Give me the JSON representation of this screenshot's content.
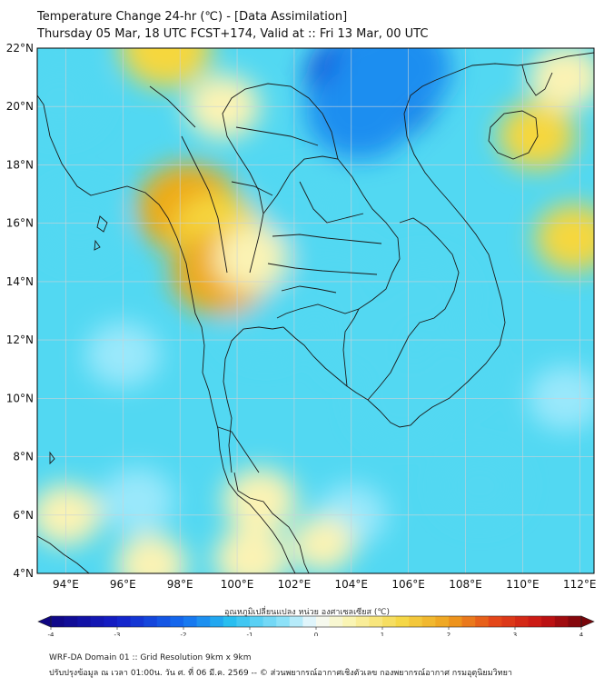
{
  "header": {
    "title_line1": "Temperature Change 24-hr (℃) - [Data Assimilation]",
    "title_line2": "Thursday 05 Mar, 18 UTC FCST+174, Valid at :: Fri 13 Mar, 00 UTC"
  },
  "map": {
    "lat_range": [
      4,
      22
    ],
    "lon_range": [
      93,
      112.5
    ],
    "lat_labels": [
      "4°N",
      "6°N",
      "8°N",
      "10°N",
      "12°N",
      "14°N",
      "16°N",
      "18°N",
      "20°N",
      "22°N"
    ],
    "lon_labels": [
      "94°E",
      "96°E",
      "98°E",
      "100°E",
      "102°E",
      "104°E",
      "106°E",
      "108°E",
      "110°E",
      "112°E"
    ],
    "lat_values": [
      4,
      6,
      8,
      10,
      12,
      14,
      16,
      18,
      20,
      22
    ],
    "lon_values": [
      94,
      96,
      98,
      100,
      102,
      104,
      106,
      108,
      110,
      112
    ],
    "background_color": "#52d8f2",
    "colors": {
      "cooling_strong": "#0a2fd4",
      "cooling_mid": "#1e8ef0",
      "cooling_light": "#9ae8fb",
      "neutral": "#f4fbfd",
      "warming_light": "#fbf3b4",
      "warming_mid": "#f6d73e",
      "warming_strong": "#eeaa16"
    },
    "blobs": [
      {
        "lon": 104.8,
        "lat": 20.8,
        "value": -2.4
      },
      {
        "lon": 105.4,
        "lat": 21.3,
        "value": -2.0
      },
      {
        "lon": 104.3,
        "lat": 19.8,
        "value": -1.6
      },
      {
        "lon": 103.5,
        "lat": 14.0,
        "value": -1.0
      },
      {
        "lon": 104.5,
        "lat": 12.0,
        "value": -1.1
      },
      {
        "lon": 105.8,
        "lat": 9.9,
        "value": -1.2
      },
      {
        "lon": 106.5,
        "lat": 13.5,
        "value": -1.0
      },
      {
        "lon": 102.0,
        "lat": 16.5,
        "value": -0.9
      },
      {
        "lon": 101.0,
        "lat": 12.7,
        "value": -1.0
      },
      {
        "lon": 107.5,
        "lat": 11.0,
        "value": -0.9
      },
      {
        "lon": 94.5,
        "lat": 16.0,
        "value": -0.9
      },
      {
        "lon": 93.8,
        "lat": 20.3,
        "value": -0.8
      },
      {
        "lon": 96.0,
        "lat": 11.5,
        "value": -0.6
      },
      {
        "lon": 108.5,
        "lat": 7.0,
        "value": -0.8
      },
      {
        "lon": 111.5,
        "lat": 10.0,
        "value": -0.6
      },
      {
        "lon": 96.5,
        "lat": 6.5,
        "value": -0.6
      },
      {
        "lon": 104.0,
        "lat": 6.0,
        "value": -0.5
      },
      {
        "lon": 98.3,
        "lat": 16.5,
        "value": 1.5
      },
      {
        "lon": 99.3,
        "lat": 15.7,
        "value": 1.0
      },
      {
        "lon": 99.4,
        "lat": 14.3,
        "value": 1.3
      },
      {
        "lon": 100.5,
        "lat": 14.8,
        "value": 0.6
      },
      {
        "lon": 97.5,
        "lat": 22.0,
        "value": 1.1
      },
      {
        "lon": 99.5,
        "lat": 20.0,
        "value": 0.6
      },
      {
        "lon": 110.5,
        "lat": 19.0,
        "value": 0.7
      },
      {
        "lon": 111.8,
        "lat": 15.5,
        "value": 0.7
      },
      {
        "lon": 111.5,
        "lat": 21.0,
        "value": 0.6
      },
      {
        "lon": 100.8,
        "lat": 6.5,
        "value": 0.6
      },
      {
        "lon": 100.5,
        "lat": 4.5,
        "value": 0.6
      },
      {
        "lon": 97.0,
        "lat": 4.3,
        "value": 0.5
      },
      {
        "lon": 103.0,
        "lat": 5.0,
        "value": 0.3
      },
      {
        "lon": 94.0,
        "lat": 6.0,
        "value": 0.5
      }
    ]
  },
  "colorbar": {
    "label": "อุณหภูมิเปลี่ยนแปลง หน่วย องศาเซลเซียส (℃)",
    "min": -4,
    "max": 4,
    "ticks": [
      "-4",
      "-3",
      "-2",
      "-1",
      "0",
      "1",
      "2",
      "3",
      "4"
    ],
    "tick_values": [
      -4,
      -3,
      -2,
      -1,
      0,
      1,
      2,
      3,
      4
    ],
    "step": 0.2
  },
  "footer": {
    "line1": "WRF-DA Domain 01 :: Grid Resolution 9km x 9km",
    "line2": "ปรับปรุงข้อมูล ณ เวลา 01:00น. วัน ศ. ที่ 06 มี.ค. 2569 -- © ส่วนพยากรณ์อากาศเชิงตัวเลข กองพยากรณ์อากาศ กรมอุตุนิยมวิทยา"
  }
}
